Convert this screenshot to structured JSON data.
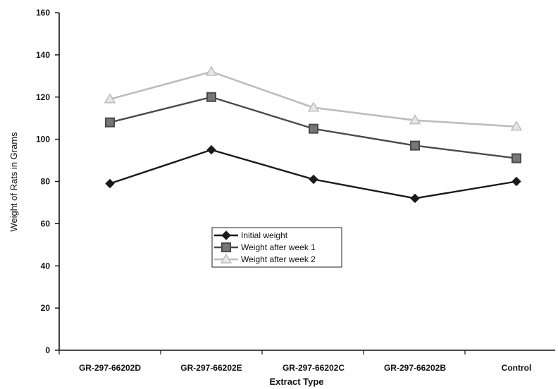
{
  "chart_data": {
    "type": "line",
    "title": "",
    "xlabel": "Extract Type",
    "ylabel": "Weight of Rats in Grams",
    "ylim": [
      0,
      160
    ],
    "yticks": [
      0,
      20,
      40,
      60,
      80,
      100,
      120,
      140,
      160
    ],
    "grid": false,
    "legend_position": "center-left",
    "categories": [
      "GR-297-66202D",
      "GR-297-66202E",
      "GR-297-66202C",
      "GR-297-66202B",
      "Control"
    ],
    "series": [
      {
        "name": "Initial weight",
        "marker": "diamond",
        "color": "#1a1a1a",
        "values": [
          79,
          95,
          81,
          72,
          80
        ]
      },
      {
        "name": "Weight  after week 1",
        "marker": "square",
        "color": "#4a4a4a",
        "values": [
          108,
          120,
          105,
          97,
          91
        ]
      },
      {
        "name": "Weight after week 2",
        "marker": "triangle",
        "color": "#bdbdbd",
        "values": [
          119,
          132,
          115,
          109,
          106
        ]
      }
    ]
  }
}
